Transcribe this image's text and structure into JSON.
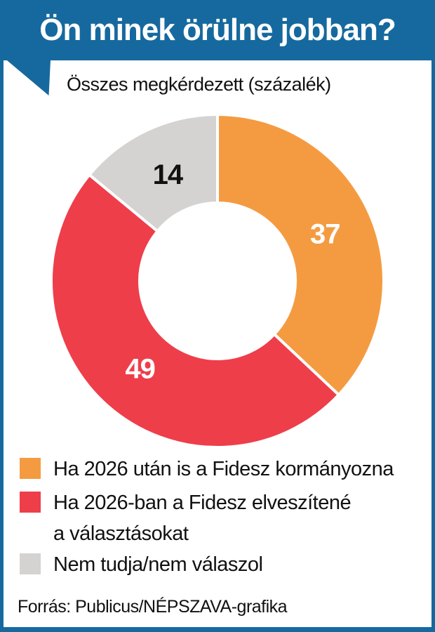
{
  "header": {
    "title": "Ön minek örülne jobban?",
    "subtitle": "Összes megkérdezett (százalék)"
  },
  "chart_data": {
    "type": "pie",
    "subtype": "donut",
    "title": "Ön minek örülne jobban?",
    "subtitle": "Összes megkérdezett (százalék)",
    "unit": "percent",
    "total": 100,
    "start_angle_deg": 0,
    "direction": "clockwise",
    "slices": [
      {
        "label": "Ha 2026 után is a Fidesz kormányozna",
        "value": 37,
        "color": "#f49b41",
        "value_label_color": "#ffffff"
      },
      {
        "label": "Ha 2026-ban a Fidesz elveszítené a választásokat",
        "value": 49,
        "color": "#ee3e4a",
        "value_label_color": "#ffffff"
      },
      {
        "label": "Nem tudja/nem válaszol",
        "value": 14,
        "color": "#d4d3d1",
        "value_label_color": "#111111"
      }
    ]
  },
  "legend": {
    "items": [
      {
        "color": "#f49b41",
        "lines": [
          "Ha 2026 után is a Fidesz kormányozna",
          ""
        ]
      },
      {
        "color": "#ee3e4a",
        "lines": [
          "Ha 2026-ban a Fidesz elveszítené",
          "a választásokat"
        ]
      },
      {
        "color": "#d4d3d1",
        "lines": [
          "Nem tudja/nem válaszol",
          ""
        ]
      }
    ]
  },
  "footer": {
    "source": "Forrás: Publicus/NÉPSZAVA-grafika"
  },
  "colors": {
    "accent_blue": "#16699e",
    "orange": "#f49b41",
    "red": "#ee3e4a",
    "gray": "#d4d3d1",
    "text": "#111111"
  }
}
